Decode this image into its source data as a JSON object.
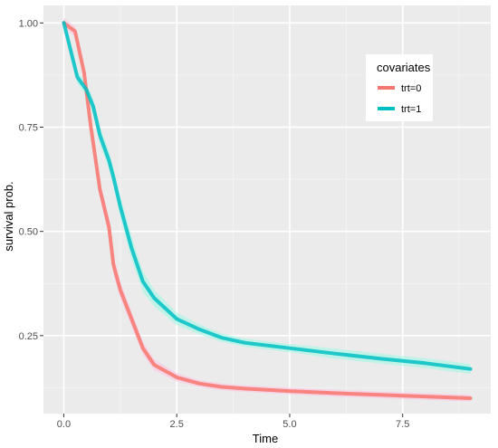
{
  "chart_data": {
    "type": "line",
    "xlabel": "Time",
    "ylabel": "survival prob.",
    "xlim": [
      -0.45,
      9.45
    ],
    "ylim": [
      0.063,
      1.042
    ],
    "x_ticks": [
      0.0,
      2.5,
      5.0,
      7.5
    ],
    "x_tick_labels": [
      "0.0",
      "2.5",
      "5.0",
      "7.5"
    ],
    "y_ticks": [
      0.25,
      0.5,
      0.75,
      1.0
    ],
    "y_tick_labels": [
      "0.25",
      "0.50",
      "0.75",
      "1.00"
    ],
    "grid": true,
    "background": "#ebebeb",
    "legend": {
      "title": "covariates",
      "placement": "top-right, inside plot"
    },
    "series": [
      {
        "name": "trt=0",
        "color": "#f8766d",
        "band_color": "#ffc0e0",
        "x": [
          0.0,
          0.25,
          0.45,
          0.6,
          0.8,
          1.0,
          1.1,
          1.25,
          1.5,
          1.75,
          2.0,
          2.5,
          3.0,
          3.5,
          4.0,
          5.0,
          6.0,
          7.0,
          8.0,
          9.0
        ],
        "y": [
          1.0,
          0.98,
          0.88,
          0.75,
          0.6,
          0.51,
          0.42,
          0.36,
          0.29,
          0.22,
          0.18,
          0.15,
          0.135,
          0.127,
          0.123,
          0.117,
          0.112,
          0.108,
          0.104,
          0.1
        ],
        "band": [
          0.012,
          0.012,
          0.015,
          0.018,
          0.02,
          0.022,
          0.022,
          0.02,
          0.018,
          0.015,
          0.013,
          0.01,
          0.008,
          0.008,
          0.008,
          0.008,
          0.008,
          0.008,
          0.008,
          0.008
        ]
      },
      {
        "name": "trt=1",
        "color": "#00bfc4",
        "band_color": "#9ff7e6",
        "x": [
          0.0,
          0.3,
          0.5,
          0.65,
          0.8,
          1.0,
          1.1,
          1.25,
          1.5,
          1.75,
          2.0,
          2.5,
          3.0,
          3.5,
          4.0,
          5.0,
          6.0,
          7.0,
          8.0,
          9.0
        ],
        "y": [
          1.0,
          0.87,
          0.84,
          0.8,
          0.73,
          0.67,
          0.63,
          0.56,
          0.46,
          0.38,
          0.34,
          0.29,
          0.265,
          0.245,
          0.233,
          0.22,
          0.207,
          0.195,
          0.184,
          0.17
        ],
        "band": [
          0.012,
          0.015,
          0.015,
          0.018,
          0.02,
          0.022,
          0.022,
          0.025,
          0.028,
          0.025,
          0.02,
          0.015,
          0.012,
          0.01,
          0.01,
          0.01,
          0.012,
          0.012,
          0.012,
          0.012
        ]
      }
    ]
  }
}
